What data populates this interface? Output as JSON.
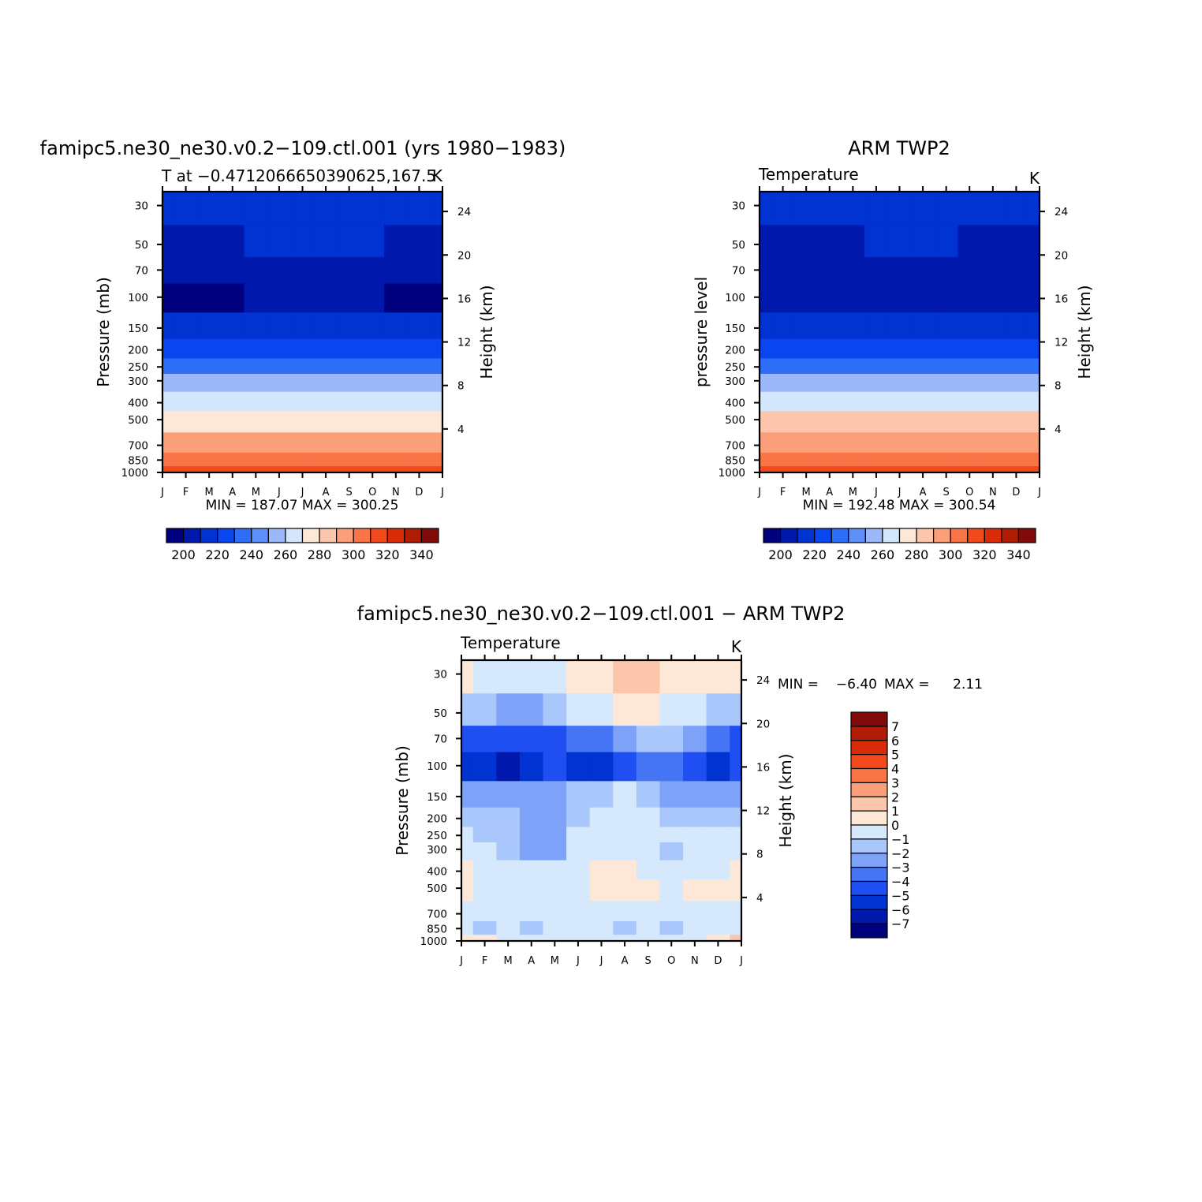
{
  "months": [
    "J",
    "F",
    "M",
    "A",
    "M",
    "J",
    "J",
    "A",
    "S",
    "O",
    "N",
    "D",
    "J"
  ],
  "pressure_ticks": [
    30,
    50,
    70,
    100,
    150,
    200,
    250,
    300,
    400,
    500,
    700,
    850,
    1000
  ],
  "height_ticks": [
    24,
    20,
    16,
    12,
    8,
    4
  ],
  "levels": {
    "abs": [
      190,
      200,
      210,
      220,
      230,
      240,
      250,
      260,
      270,
      280,
      290,
      300,
      310,
      320,
      330,
      340,
      350
    ],
    "diff": [
      -7,
      -6,
      -5,
      -4,
      -3,
      -2,
      -1,
      0,
      1,
      2,
      3,
      4,
      5,
      6,
      7
    ]
  },
  "colors": {
    "abs": [
      "#00007f",
      "#0019ac",
      "#0033d1",
      "#0a46f0",
      "#2e6df7",
      "#5f8ff9",
      "#9bb8fa",
      "#d4e6fc",
      "#fde8d8",
      "#fcc6ac",
      "#fb9f7b",
      "#f97548",
      "#f24a1c",
      "#d92b07",
      "#b01d04",
      "#810b0b"
    ],
    "diff": [
      "#00007f",
      "#0019ac",
      "#0033d1",
      "#1f4ff2",
      "#4575f5",
      "#7da2f8",
      "#aac7fb",
      "#d5e8fc",
      "#fde8d8",
      "#fcc6ac",
      "#fb9f7b",
      "#f97548",
      "#f24a1c",
      "#d92b07",
      "#b01d04",
      "#810b0b"
    ]
  },
  "panels": [
    {
      "title": "famipc5.ne30_ne30.v0.2−109.ctl.001 (yrs 1980−1983)",
      "subtitle_left": "T at −0.4712066650390625,167.5",
      "subtitle_right": "K",
      "ylabel": "Pressure (mb)",
      "y2label": "Height (km)",
      "minmax": "MIN = 187.07 MAX = 300.25",
      "colorbar_labels": [
        "200",
        "220",
        "240",
        "260",
        "280",
        "300",
        "320",
        "340"
      ]
    },
    {
      "title": "ARM TWP2",
      "subtitle_left": "Temperature",
      "subtitle_right": "K",
      "ylabel": "pressure level",
      "y2label": "Height (km)",
      "minmax": "MIN = 192.48 MAX = 300.54",
      "colorbar_labels": [
        "200",
        "220",
        "240",
        "260",
        "280",
        "300",
        "320",
        "340"
      ]
    },
    {
      "title": "famipc5.ne30_ne30.v0.2−109.ctl.001 − ARM TWP2",
      "subtitle_left": "Temperature",
      "subtitle_right": "K",
      "ylabel": "Pressure (mb)",
      "y2label": "Height (km)",
      "minmax_label": "MIN =",
      "min_value": "−6.40",
      "max_label": "MAX =",
      "max_value": "2.11",
      "colorbar_labels": [
        "7",
        "6",
        "5",
        "4",
        "3",
        "2",
        "1",
        "0",
        "−1",
        "−2",
        "−3",
        "−4",
        "−5",
        "−6",
        "−7"
      ]
    }
  ],
  "chart_data": [
    {
      "type": "heatmap",
      "title": "famipc5.ne30_ne30.v0.2−109.ctl.001 (yrs 1980−1983)",
      "xlabel": "",
      "ylabel": "Pressure (mb)",
      "y2label": "Height (km)",
      "x": [
        "J",
        "F",
        "M",
        "A",
        "M",
        "J",
        "J",
        "A",
        "S",
        "O",
        "N",
        "D",
        "J"
      ],
      "y_pressure_mb": [
        30,
        50,
        70,
        100,
        150,
        200,
        250,
        300,
        400,
        500,
        700,
        850,
        1000
      ],
      "y_scale": "log",
      "units": "K",
      "min": 187.07,
      "max": 300.25,
      "z": [
        [
          203,
          203,
          204,
          205,
          206,
          207,
          207,
          207,
          207,
          206,
          205,
          204,
          203
        ],
        [
          197,
          197,
          198,
          199,
          200,
          201,
          202,
          202,
          202,
          201,
          199,
          198,
          197
        ],
        [
          193,
          193,
          193,
          194,
          195,
          196,
          197,
          197,
          197,
          196,
          195,
          194,
          193
        ],
        [
          188,
          188,
          188,
          189,
          190,
          190,
          190,
          190,
          190,
          190,
          189,
          188,
          188
        ],
        [
          206,
          206,
          206,
          206,
          206,
          207,
          207,
          207,
          207,
          207,
          206,
          206,
          206
        ],
        [
          218,
          218,
          218,
          218,
          218,
          218,
          218,
          218,
          218,
          218,
          218,
          218,
          218
        ],
        [
          229,
          229,
          229,
          229,
          229,
          229,
          229,
          229,
          229,
          229,
          229,
          229,
          229
        ],
        [
          240,
          240,
          240,
          240,
          240,
          240,
          240,
          240,
          240,
          240,
          240,
          240,
          240
        ],
        [
          256,
          256,
          256,
          256,
          256,
          256,
          256,
          256,
          256,
          256,
          256,
          256,
          256
        ],
        [
          268,
          268,
          268,
          268,
          268,
          268,
          268,
          268,
          268,
          268,
          268,
          268,
          268
        ],
        [
          283,
          283,
          283,
          283,
          283,
          283,
          283,
          283,
          283,
          283,
          283,
          283,
          283
        ],
        [
          291,
          291,
          291,
          291,
          291,
          291,
          291,
          291,
          291,
          291,
          291,
          291,
          291
        ],
        [
          300,
          300,
          300,
          300,
          300,
          300,
          300,
          300,
          300,
          300,
          300,
          300,
          300
        ]
      ]
    },
    {
      "type": "heatmap",
      "title": "ARM TWP2",
      "xlabel": "",
      "ylabel": "pressure level",
      "y2label": "Height (km)",
      "x": [
        "J",
        "F",
        "M",
        "A",
        "M",
        "J",
        "J",
        "A",
        "S",
        "O",
        "N",
        "D",
        "J"
      ],
      "y_pressure_mb": [
        30,
        50,
        70,
        100,
        150,
        200,
        250,
        300,
        400,
        500,
        700,
        850,
        1000
      ],
      "y_scale": "log",
      "units": "K",
      "min": 192.48,
      "max": 300.54,
      "z": [
        [
          201,
          201,
          202,
          203,
          205,
          206,
          206,
          206,
          205,
          204,
          203,
          202,
          201
        ],
        [
          195,
          195,
          196,
          197,
          198,
          200,
          201,
          201,
          200,
          199,
          197,
          196,
          195
        ],
        [
          193,
          193,
          193,
          193,
          194,
          195,
          196,
          196,
          195,
          194,
          193,
          193,
          193
        ],
        [
          193,
          193,
          193,
          193,
          193,
          193,
          193,
          193,
          193,
          193,
          193,
          193,
          193
        ],
        [
          205,
          205,
          205,
          205,
          205,
          206,
          206,
          206,
          206,
          205,
          205,
          205,
          205
        ],
        [
          218,
          218,
          218,
          218,
          218,
          218,
          218,
          218,
          218,
          218,
          218,
          218,
          218
        ],
        [
          229,
          229,
          229,
          229,
          229,
          229,
          229,
          229,
          229,
          229,
          229,
          229,
          229
        ],
        [
          240,
          240,
          240,
          240,
          240,
          240,
          240,
          240,
          240,
          240,
          240,
          240,
          240
        ],
        [
          256,
          256,
          256,
          256,
          256,
          256,
          256,
          256,
          256,
          256,
          256,
          256,
          256
        ],
        [
          272,
          272,
          272,
          272,
          272,
          272,
          272,
          272,
          272,
          272,
          272,
          272,
          272
        ],
        [
          284,
          284,
          284,
          284,
          284,
          285,
          285,
          285,
          284,
          284,
          284,
          284,
          284
        ],
        [
          293,
          293,
          293,
          293,
          293,
          294,
          294,
          294,
          293,
          293,
          293,
          293,
          293
        ],
        [
          300,
          300,
          300,
          300,
          300,
          300,
          300,
          300,
          300,
          300,
          300,
          300,
          300
        ]
      ]
    },
    {
      "type": "heatmap",
      "title": "famipc5.ne30_ne30.v0.2−109.ctl.001 − ARM TWP2",
      "xlabel": "",
      "ylabel": "Pressure (mb)",
      "y2label": "Height (km)",
      "x": [
        "J",
        "F",
        "M",
        "A",
        "M",
        "J",
        "J",
        "A",
        "S",
        "O",
        "N",
        "D",
        "J"
      ],
      "y_pressure_mb": [
        30,
        50,
        70,
        100,
        150,
        200,
        250,
        300,
        400,
        500,
        700,
        850,
        1000
      ],
      "y_scale": "log",
      "units": "K",
      "min": -6.4,
      "max": 2.11,
      "z": [
        [
          0.5,
          -0.5,
          -0.5,
          -0.5,
          -0.5,
          0.5,
          0.5,
          1.5,
          1.5,
          0.5,
          0.5,
          0.5,
          0.5
        ],
        [
          -1.5,
          -1.5,
          -2.5,
          -2.5,
          -1.5,
          -0.5,
          -0.5,
          0.5,
          0.5,
          -0.5,
          -0.5,
          -1.5,
          -1.5
        ],
        [
          -4.5,
          -4.5,
          -4.5,
          -4.5,
          -4.5,
          -3.5,
          -3.5,
          -2.5,
          -1.5,
          -1.5,
          -2.5,
          -3.5,
          -4.5
        ],
        [
          -5.5,
          -5.5,
          -6.2,
          -5.5,
          -4.5,
          -5.5,
          -5.5,
          -4.5,
          -3.5,
          -3.5,
          -4.5,
          -5.5,
          -4.5
        ],
        [
          -2.5,
          -2.5,
          -2.5,
          -2.5,
          -2.5,
          -1.5,
          -1.5,
          -0.5,
          -1.5,
          -2.5,
          -2.5,
          -2.5,
          -2.5
        ],
        [
          -1.5,
          -1.5,
          -1.5,
          -2.5,
          -2.5,
          -1.5,
          -0.5,
          -0.5,
          -0.5,
          -1.5,
          -1.5,
          -1.5,
          -1.5
        ],
        [
          -0.5,
          -1.5,
          -1.5,
          -2.5,
          -2.5,
          -0.5,
          -0.5,
          -0.5,
          -0.5,
          -0.5,
          -0.5,
          -0.5,
          -0.5
        ],
        [
          -0.5,
          -0.5,
          -1.5,
          -2.5,
          -2.5,
          -0.5,
          -0.5,
          -0.5,
          -0.5,
          -1.5,
          -0.5,
          -0.5,
          -0.5
        ],
        [
          0.5,
          -0.5,
          -0.5,
          -0.5,
          -0.5,
          -0.5,
          0.5,
          0.5,
          -0.5,
          -0.5,
          -0.5,
          -0.5,
          0.5
        ],
        [
          0.5,
          -0.5,
          -0.5,
          -0.5,
          -0.5,
          -0.5,
          0.5,
          0.5,
          0.5,
          -0.5,
          0.5,
          0.5,
          0.5
        ],
        [
          -0.5,
          -0.5,
          -0.5,
          -0.5,
          -0.5,
          -0.5,
          -0.5,
          -0.5,
          -0.5,
          -0.5,
          -0.5,
          -0.5,
          -0.5
        ],
        [
          -0.5,
          -1.5,
          -0.5,
          -1.5,
          -0.5,
          -0.5,
          -0.5,
          -1.5,
          -0.5,
          -1.5,
          -0.5,
          -0.5,
          -0.5
        ],
        [
          0.5,
          0.5,
          -0.5,
          -0.5,
          -0.5,
          -0.5,
          -0.5,
          -0.5,
          -0.5,
          -0.5,
          -0.5,
          0.5,
          1.5
        ]
      ]
    }
  ]
}
